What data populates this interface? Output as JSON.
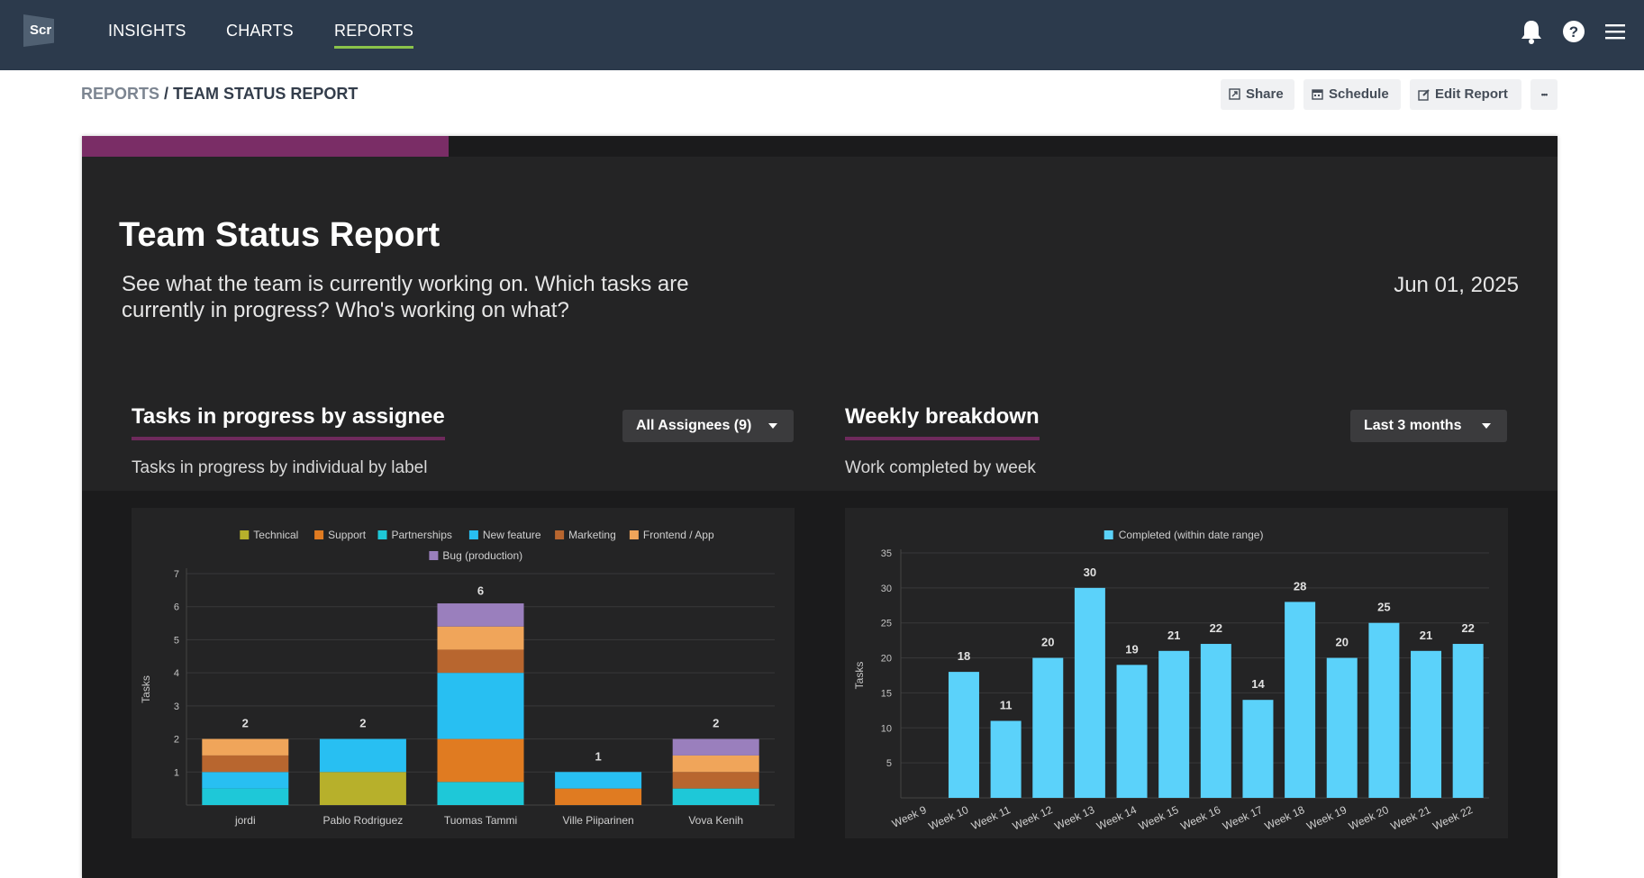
{
  "nav": {
    "logo_text": "Scr",
    "items": [
      {
        "label": "INSIGHTS"
      },
      {
        "label": "CHARTS"
      },
      {
        "label": "REPORTS"
      }
    ],
    "active_color": "#8bc34a",
    "icons": [
      "bell-icon",
      "help-icon",
      "menu-icon"
    ]
  },
  "breadcrumb": {
    "root": "REPORTS",
    "separator": " / ",
    "current": "TEAM STATUS REPORT"
  },
  "toolbar": {
    "share_label": "Share",
    "schedule_label": "Schedule",
    "edit_label": "Edit Report",
    "more_label": "•••"
  },
  "report": {
    "title": "Team Status Report",
    "description": "See what the team is currently working on. Which tasks are currently in progress? Who's working on what?",
    "date": "Jun 01, 2025",
    "accent_color": "#7a2d66"
  },
  "panels": {
    "assignee": {
      "title": "Tasks in progress by assignee",
      "subtitle": "Tasks in progress by individual by label",
      "filter": "All Assignees (9)"
    },
    "weekly": {
      "title": "Weekly breakdown",
      "subtitle": "Work completed by week",
      "filter": "Last 3 months"
    }
  },
  "chart_data": [
    {
      "type": "bar",
      "stacked": true,
      "categories": [
        "jordi",
        "Pablo Rodriguez",
        "Tuomas Tammi",
        "Ville Piiparinen",
        "Vova Kenih"
      ],
      "totals": [
        2,
        2,
        6,
        1,
        2
      ],
      "legend": [
        "Technical",
        "Support",
        "Partnerships",
        "New feature",
        "Marketing",
        "Frontend / App",
        "Bug (production)"
      ],
      "series": [
        {
          "name": "Partnerships",
          "color": "#1ec8d8",
          "values": [
            0.5,
            0,
            0.7,
            0,
            0.5
          ]
        },
        {
          "name": "Technical",
          "color": "#b7b02b",
          "values": [
            0,
            1,
            0,
            0,
            0
          ]
        },
        {
          "name": "Support",
          "color": "#e07b21",
          "values": [
            0,
            0,
            1.3,
            0.5,
            0
          ]
        },
        {
          "name": "New feature",
          "color": "#28bff2",
          "values": [
            0.5,
            1,
            2,
            0.5,
            0
          ]
        },
        {
          "name": "Marketing",
          "color": "#b8662f",
          "values": [
            0.5,
            0,
            0.7,
            0,
            0.5
          ]
        },
        {
          "name": "Frontend / App",
          "color": "#f0a55a",
          "values": [
            0.5,
            0,
            0.7,
            0,
            0.5
          ]
        },
        {
          "name": "Bug (production)",
          "color": "#9a7fbd",
          "values": [
            0,
            0,
            0.7,
            0,
            0.5
          ]
        }
      ],
      "ylabel": "Tasks",
      "yticks": [
        1,
        2,
        3,
        4,
        5,
        6,
        7
      ],
      "ylim": [
        0,
        7
      ]
    },
    {
      "type": "bar",
      "categories": [
        "Week 9",
        "Week 10",
        "Week 11",
        "Week 12",
        "Week 13",
        "Week 14",
        "Week 15",
        "Week 16",
        "Week 17",
        "Week 18",
        "Week 19",
        "Week 20",
        "Week 21",
        "Week 22"
      ],
      "series": [
        {
          "name": "Completed (within date range)",
          "color": "#5bd2fa",
          "values": [
            null,
            18,
            11,
            20,
            30,
            19,
            21,
            22,
            14,
            28,
            20,
            25,
            21,
            22
          ]
        }
      ],
      "value_labels": [
        "",
        "18",
        "11",
        "20",
        "30",
        "19",
        "21",
        "22",
        "14",
        "28",
        "20",
        "25",
        "21",
        "22"
      ],
      "ylabel": "Tasks",
      "yticks": [
        5,
        10,
        15,
        20,
        25,
        30,
        35
      ],
      "ylim": [
        0,
        35
      ]
    }
  ]
}
